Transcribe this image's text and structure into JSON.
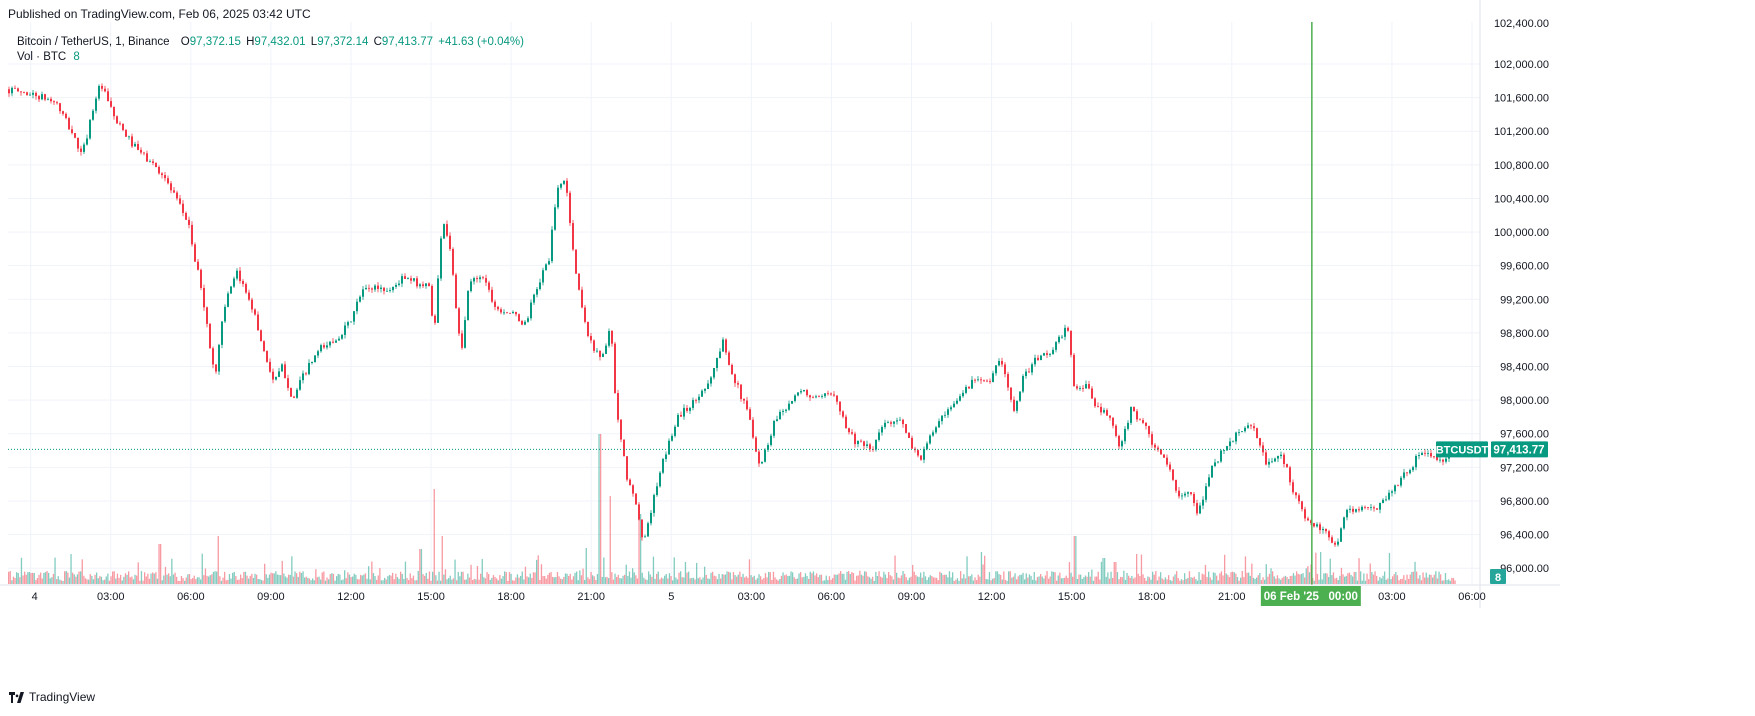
{
  "published_text": "Published on TradingView.com, Feb 06, 2025 03:42 UTC",
  "brand": "TradingView",
  "legend": {
    "symbol": "Bitcoin / TetherUS, 1, Binance",
    "o_label": "O",
    "o_value": "97,372.15",
    "h_label": "H",
    "h_value": "97,432.01",
    "l_label": "L",
    "l_value": "97,372.14",
    "c_label": "C",
    "c_value": "97,413.77",
    "change": "+41.63 (+0.04%)",
    "vol_label": "Vol · BTC",
    "vol_value": "8"
  },
  "colors": {
    "up": "#089981",
    "down": "#f23645",
    "crosshair": "#4caf50",
    "grid": "#f0f3fa"
  },
  "chart_data": {
    "type": "candlestick",
    "symbol": "BTCUSDT",
    "last_price": 97413.77,
    "last_price_label": "97,413.77",
    "symbol_tag": "BTCUSDT",
    "volume_last": "8",
    "crosshair_label": "06 Feb '25   00:00",
    "ylim": [
      95800,
      102500
    ],
    "y_ticks": [
      96000,
      96400,
      96800,
      97200,
      97600,
      98000,
      98400,
      98800,
      99200,
      99600,
      100000,
      100400,
      100800,
      101200,
      101600,
      102000
    ],
    "y_tick_labels": [
      "96,000.00",
      "96,400.00",
      "96,800.00",
      "97,200.00",
      "97,600.00",
      "98,000.00",
      "98,400.00",
      "98,800.00",
      "99,200.00",
      "99,600.00",
      "100,000.00",
      "100,400.00",
      "100,800.00",
      "101,200.00",
      "101,600.00",
      "102,000.00"
    ],
    "y_top_partial": "102,400.00",
    "x_ticks": [
      "4",
      "03:00",
      "06:00",
      "09:00",
      "12:00",
      "15:00",
      "18:00",
      "21:00",
      "5",
      "03:00",
      "06:00",
      "09:00",
      "12:00",
      "15:00",
      "18:00",
      "21:00",
      "00:00",
      "03:00",
      "06:00"
    ],
    "x_tick_hours": [
      0,
      3,
      6,
      9,
      12,
      15,
      18,
      21,
      24,
      27,
      30,
      33,
      36,
      39,
      42,
      45,
      48,
      51,
      54
    ],
    "x_range_hours": [
      -0.85,
      54.3
    ],
    "crosshair_hour": 48,
    "price_path": [
      [
        -0.85,
        101700
      ],
      [
        0,
        101650
      ],
      [
        1.0,
        101550
      ],
      [
        1.6,
        101200
      ],
      [
        2.0,
        100900
      ],
      [
        2.5,
        101600
      ],
      [
        2.7,
        101750
      ],
      [
        3.3,
        101300
      ],
      [
        4.0,
        101000
      ],
      [
        4.5,
        100850
      ],
      [
        5.0,
        100700
      ],
      [
        5.5,
        100400
      ],
      [
        6.0,
        100100
      ],
      [
        6.2,
        99700
      ],
      [
        6.5,
        99300
      ],
      [
        6.8,
        98600
      ],
      [
        7.0,
        98300
      ],
      [
        7.3,
        99100
      ],
      [
        7.8,
        99500
      ],
      [
        8.3,
        99200
      ],
      [
        8.8,
        98600
      ],
      [
        9.2,
        98200
      ],
      [
        9.5,
        98400
      ],
      [
        9.9,
        98000
      ],
      [
        10.3,
        98300
      ],
      [
        10.9,
        98600
      ],
      [
        11.4,
        98700
      ],
      [
        12.0,
        98900
      ],
      [
        12.5,
        99300
      ],
      [
        13.0,
        99350
      ],
      [
        13.5,
        99300
      ],
      [
        14.0,
        99450
      ],
      [
        14.5,
        99400
      ],
      [
        15.0,
        99350
      ],
      [
        15.2,
        98800
      ],
      [
        15.5,
        100200
      ],
      [
        15.8,
        99800
      ],
      [
        16.2,
        98500
      ],
      [
        16.5,
        99400
      ],
      [
        17.0,
        99500
      ],
      [
        17.5,
        99100
      ],
      [
        18.0,
        99050
      ],
      [
        18.6,
        98900
      ],
      [
        19.0,
        99300
      ],
      [
        19.5,
        99700
      ],
      [
        19.8,
        100500
      ],
      [
        20.1,
        100650
      ],
      [
        20.5,
        99500
      ],
      [
        21.0,
        98700
      ],
      [
        21.5,
        98500
      ],
      [
        21.8,
        98900
      ],
      [
        22.0,
        97900
      ],
      [
        22.4,
        97100
      ],
      [
        22.8,
        96700
      ],
      [
        23.0,
        96300
      ],
      [
        23.4,
        96800
      ],
      [
        23.8,
        97300
      ],
      [
        24.3,
        97800
      ],
      [
        25.0,
        98000
      ],
      [
        25.6,
        98300
      ],
      [
        26.0,
        98700
      ],
      [
        26.5,
        98200
      ],
      [
        27.0,
        97800
      ],
      [
        27.4,
        97200
      ],
      [
        28.0,
        97800
      ],
      [
        28.6,
        98000
      ],
      [
        29.0,
        98100
      ],
      [
        29.6,
        98000
      ],
      [
        30.2,
        98100
      ],
      [
        30.6,
        97700
      ],
      [
        31.0,
        97500
      ],
      [
        31.6,
        97400
      ],
      [
        32.0,
        97700
      ],
      [
        32.6,
        97800
      ],
      [
        33.0,
        97500
      ],
      [
        33.4,
        97300
      ],
      [
        34.0,
        97700
      ],
      [
        34.6,
        97900
      ],
      [
        35.0,
        98100
      ],
      [
        35.6,
        98300
      ],
      [
        36.0,
        98200
      ],
      [
        36.4,
        98500
      ],
      [
        36.9,
        97900
      ],
      [
        37.3,
        98300
      ],
      [
        37.8,
        98500
      ],
      [
        38.4,
        98600
      ],
      [
        38.9,
        98900
      ],
      [
        39.2,
        98100
      ],
      [
        39.6,
        98200
      ],
      [
        40.0,
        97900
      ],
      [
        40.5,
        97800
      ],
      [
        40.9,
        97400
      ],
      [
        41.3,
        97900
      ],
      [
        41.8,
        97700
      ],
      [
        42.2,
        97400
      ],
      [
        42.6,
        97300
      ],
      [
        43.0,
        96900
      ],
      [
        43.5,
        96900
      ],
      [
        43.8,
        96600
      ],
      [
        44.3,
        97200
      ],
      [
        45.0,
        97500
      ],
      [
        45.6,
        97700
      ],
      [
        46.0,
        97600
      ],
      [
        46.4,
        97200
      ],
      [
        46.9,
        97400
      ],
      [
        47.3,
        97000
      ],
      [
        47.8,
        96600
      ],
      [
        48.2,
        96500
      ],
      [
        48.6,
        96400
      ],
      [
        49.0,
        96300
      ],
      [
        49.4,
        96700
      ],
      [
        49.9,
        96700
      ],
      [
        50.4,
        96700
      ],
      [
        51.0,
        96900
      ],
      [
        51.5,
        97100
      ],
      [
        52.0,
        97300
      ],
      [
        52.4,
        97400
      ],
      [
        52.8,
        97250
      ],
      [
        53.2,
        97300
      ],
      [
        53.4,
        97414
      ]
    ],
    "volume_spikes": [
      [
        4.8,
        40
      ],
      [
        7.0,
        48
      ],
      [
        14.6,
        35
      ],
      [
        15.1,
        95
      ],
      [
        15.4,
        48
      ],
      [
        20.8,
        36
      ],
      [
        21.3,
        150
      ],
      [
        21.7,
        88
      ],
      [
        22.8,
        70
      ],
      [
        24.5,
        22
      ],
      [
        35.6,
        32
      ],
      [
        39.1,
        48
      ],
      [
        40.2,
        26
      ],
      [
        40.6,
        22
      ],
      [
        41.4,
        30
      ],
      [
        48.3,
        32
      ]
    ]
  }
}
